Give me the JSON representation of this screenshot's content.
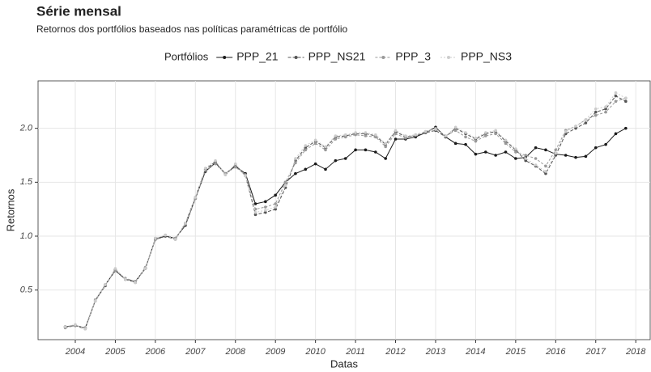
{
  "chart_data": {
    "type": "line",
    "title": "Série mensal",
    "subtitle": "Retornos dos portfólios baseados nas políticas paramétricas de portfólio",
    "x_label": "Datas",
    "y_label": "Retornos",
    "legend_title": "Portfólios",
    "x": [
      2003.75,
      2004,
      2004.25,
      2004.5,
      2004.75,
      2005,
      2005.25,
      2005.5,
      2005.75,
      2006,
      2006.25,
      2006.5,
      2006.75,
      2007,
      2007.25,
      2007.5,
      2007.75,
      2008,
      2008.25,
      2008.5,
      2008.75,
      2009,
      2009.25,
      2009.5,
      2009.75,
      2010,
      2010.25,
      2010.5,
      2010.75,
      2011,
      2011.25,
      2011.5,
      2011.75,
      2012,
      2012.25,
      2012.5,
      2012.75,
      2013,
      2013.25,
      2013.5,
      2013.75,
      2014,
      2014.25,
      2014.5,
      2014.75,
      2015,
      2015.25,
      2015.5,
      2015.75,
      2016,
      2016.25,
      2016.5,
      2016.75,
      2017,
      2017.25,
      2017.5,
      2017.75
    ],
    "series": [
      {
        "name": "PPP_21",
        "color": "#1a1a1a",
        "values": [
          0.16,
          0.17,
          0.15,
          0.4,
          0.55,
          0.68,
          0.6,
          0.58,
          0.7,
          0.97,
          1.0,
          0.98,
          1.1,
          1.35,
          1.6,
          1.68,
          1.58,
          1.65,
          1.58,
          1.3,
          1.32,
          1.38,
          1.5,
          1.58,
          1.62,
          1.67,
          1.62,
          1.7,
          1.72,
          1.8,
          1.8,
          1.78,
          1.72,
          1.9,
          1.9,
          1.92,
          1.96,
          2.01,
          1.92,
          1.86,
          1.85,
          1.76,
          1.78,
          1.75,
          1.78,
          1.72,
          1.73,
          1.82,
          1.8,
          1.76,
          1.75,
          1.73,
          1.74,
          1.82,
          1.85,
          1.95,
          2.0
        ]
      },
      {
        "name": "PPP_NS21",
        "color": "#555555",
        "values": [
          0.16,
          0.17,
          0.14,
          0.4,
          0.54,
          0.69,
          0.6,
          0.57,
          0.7,
          0.98,
          1.0,
          0.97,
          1.12,
          1.36,
          1.62,
          1.69,
          1.57,
          1.66,
          1.56,
          1.2,
          1.22,
          1.25,
          1.45,
          1.7,
          1.82,
          1.88,
          1.82,
          1.92,
          1.93,
          1.95,
          1.95,
          1.93,
          1.85,
          1.97,
          1.92,
          1.93,
          1.96,
          1.98,
          1.92,
          2.0,
          1.95,
          1.9,
          1.95,
          1.97,
          1.88,
          1.8,
          1.7,
          1.65,
          1.58,
          1.75,
          1.95,
          2.0,
          2.05,
          2.15,
          2.18,
          2.3,
          2.25
        ]
      },
      {
        "name": "PPP_3",
        "color": "#999999",
        "values": [
          0.15,
          0.17,
          0.15,
          0.41,
          0.55,
          0.68,
          0.61,
          0.58,
          0.71,
          0.97,
          1.01,
          0.98,
          1.11,
          1.35,
          1.61,
          1.67,
          1.58,
          1.64,
          1.57,
          1.25,
          1.27,
          1.3,
          1.5,
          1.68,
          1.8,
          1.86,
          1.8,
          1.9,
          1.92,
          1.94,
          1.93,
          1.92,
          1.83,
          1.95,
          1.91,
          1.94,
          1.97,
          2.0,
          1.93,
          1.98,
          1.92,
          1.88,
          1.93,
          1.95,
          1.86,
          1.78,
          1.75,
          1.72,
          1.65,
          1.8,
          1.98,
          2.02,
          2.08,
          2.12,
          2.15,
          2.25,
          2.28
        ]
      },
      {
        "name": "PPP_NS3",
        "color": "#cccccc",
        "values": [
          0.16,
          0.18,
          0.14,
          0.4,
          0.55,
          0.7,
          0.6,
          0.57,
          0.7,
          0.98,
          1.01,
          0.97,
          1.12,
          1.36,
          1.63,
          1.7,
          1.57,
          1.67,
          1.56,
          1.22,
          1.24,
          1.27,
          1.47,
          1.72,
          1.84,
          1.89,
          1.83,
          1.93,
          1.94,
          1.96,
          1.96,
          1.94,
          1.86,
          1.98,
          1.93,
          1.94,
          1.97,
          1.99,
          1.93,
          2.01,
          1.96,
          1.91,
          1.96,
          1.98,
          1.89,
          1.81,
          1.72,
          1.66,
          1.6,
          1.77,
          1.97,
          2.02,
          2.08,
          2.18,
          2.2,
          2.33,
          2.28
        ]
      }
    ],
    "xlim": [
      2003.07,
      2018.36
    ],
    "xticks": [
      2004,
      2005,
      2006,
      2007,
      2008,
      2009,
      2010,
      2011,
      2012,
      2013,
      2014,
      2015,
      2016,
      2017,
      2018
    ],
    "ylim": [
      0.04,
      2.44
    ],
    "yticks": [
      0.5,
      {
        "value": 1.0,
        "label": "1.0"
      },
      1.5,
      {
        "value": 2.0,
        "label": "2.0"
      }
    ],
    "grid": true
  }
}
